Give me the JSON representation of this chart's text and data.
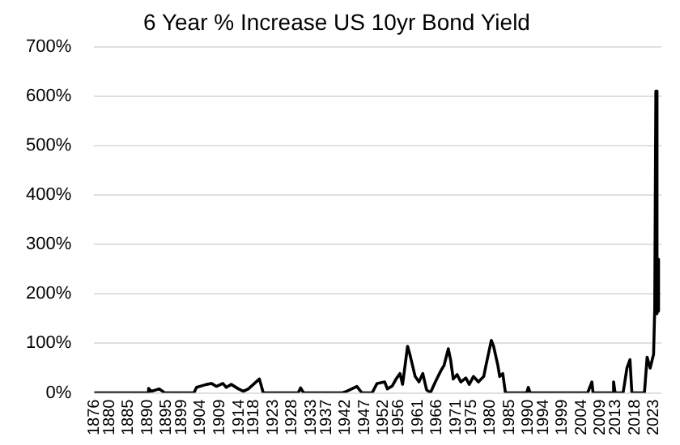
{
  "chart_data": {
    "type": "line",
    "title": "6 Year % Increase US 10yr Bond Yield",
    "x": [
      1876,
      1890,
      1890.3,
      1891,
      1893.1,
      1894.5,
      1902.2,
      1902.9,
      1905.5,
      1906.8,
      1908.1,
      1909.8,
      1910.7,
      1912,
      1913.9,
      1915.2,
      1916.5,
      1919.4,
      1920.4,
      1929.6,
      1930.2,
      1931,
      1941.2,
      1942.3,
      1945,
      1946.3,
      1949,
      1950.3,
      1952.3,
      1953,
      1954.3,
      1955.3,
      1956.3,
      1957,
      1958.3,
      1958.9,
      1960.3,
      1961.3,
      1962.3,
      1963.3,
      1964.3,
      1965.6,
      1967,
      1967.9,
      1969,
      1969.6,
      1970.3,
      1971.3,
      1972.3,
      1973.6,
      1974.5,
      1975.6,
      1976.9,
      1978.3,
      1978.9,
      1980.3,
      1980.9,
      1982,
      1982.5,
      1983.3,
      1984,
      1989.6,
      1990,
      1990.5,
      2005.6,
      2006.7,
      2007,
      2012,
      2012.4,
      2012.8,
      2014.9,
      2015.9,
      2016.7,
      2017.2,
      2020.5,
      2021.2,
      2022,
      2022.9,
      2023.2,
      2023.5,
      2023.8,
      2024,
      2024.2
    ],
    "series": [
      {
        "color": "#000000",
        "values": [
          0,
          0,
          9,
          3,
          8,
          0,
          0,
          11,
          17,
          19,
          13,
          19,
          11,
          17,
          8,
          3,
          8,
          28,
          0,
          0,
          10,
          0,
          0,
          3,
          13,
          0,
          0,
          19,
          22,
          8,
          14,
          28,
          39,
          17,
          94,
          78,
          33,
          22,
          39,
          6,
          0,
          22,
          44,
          56,
          89,
          67,
          28,
          37,
          22,
          30,
          17,
          33,
          22,
          33,
          56,
          106,
          94,
          56,
          33,
          39,
          0,
          0,
          11,
          0,
          0,
          22,
          0,
          0,
          22,
          0,
          0,
          50,
          67,
          0,
          0,
          72,
          50,
          78,
          170,
          610,
          160,
          270,
          165
        ]
      }
    ],
    "xlim": [
      1876,
      2025
    ],
    "xticks": [
      1876,
      1880,
      1885,
      1890,
      1895,
      1899,
      1904,
      1909,
      1914,
      1918,
      1923,
      1928,
      1933,
      1937,
      1942,
      1947,
      1952,
      1956,
      1961,
      1966,
      1971,
      1975,
      1980,
      1985,
      1990,
      1994,
      1999,
      2004,
      2009,
      2013,
      2018,
      2023
    ],
    "ylim": [
      0,
      700
    ],
    "yticks": [
      {
        "value": 0,
        "label": "0%"
      },
      {
        "value": 100,
        "label": "100%"
      },
      {
        "value": 200,
        "label": "200%"
      },
      {
        "value": 300,
        "label": "300%"
      },
      {
        "value": 400,
        "label": "400%"
      },
      {
        "value": 500,
        "label": "500%"
      },
      {
        "value": 600,
        "label": "600%"
      },
      {
        "value": 700,
        "label": "700%"
      }
    ],
    "grid": "y",
    "legend": false,
    "marker": "none",
    "line_style": "solid"
  }
}
